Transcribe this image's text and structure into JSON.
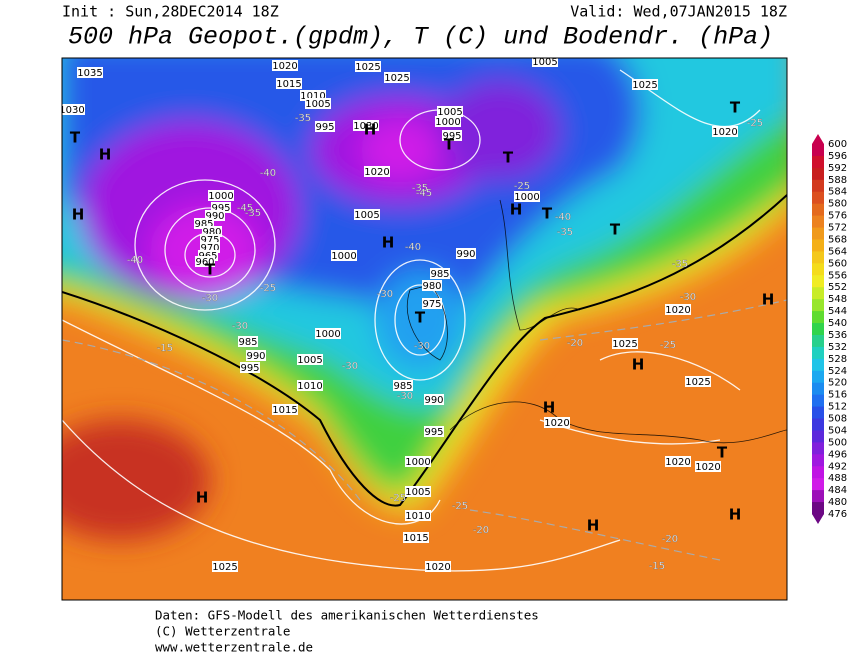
{
  "header": {
    "init": "Init : Sun,28DEC2014 18Z",
    "valid": "Valid: Wed,07JAN2015 18Z",
    "title": "500 hPa Geopot.(gpdm), T (C) und Bodendr. (hPa)"
  },
  "colorbar": {
    "labels": [
      600,
      596,
      592,
      588,
      584,
      580,
      576,
      572,
      568,
      564,
      560,
      556,
      552,
      548,
      544,
      540,
      536,
      532,
      528,
      524,
      520,
      516,
      512,
      508,
      504,
      500,
      496,
      492,
      488,
      484,
      480,
      476
    ],
    "colors": [
      "#c8004e",
      "#d0102c",
      "#c81e1e",
      "#d23a1e",
      "#dc5020",
      "#e46a1e",
      "#ec8220",
      "#f09a1c",
      "#f4b018",
      "#f4c81c",
      "#f4dc1c",
      "#f0ec24",
      "#c8ec28",
      "#98e62c",
      "#60dc30",
      "#30d44c",
      "#28d08c",
      "#20d0c0",
      "#20c4e8",
      "#1ca8f0",
      "#1c8cf0",
      "#2070f0",
      "#2850e8",
      "#3c38e0",
      "#5c28dc",
      "#8020dc",
      "#a018e0",
      "#c014e4",
      "#d01ce8",
      "#9c10b8",
      "#6c0884"
    ]
  },
  "map_labels": [
    "1035",
    "1030",
    "1020",
    "1015",
    "1010",
    "1005",
    "1025",
    "1025",
    "995",
    "1030",
    "1005",
    "1000",
    "995",
    "1020",
    "1000",
    "995",
    "990",
    "985",
    "980",
    "975",
    "970",
    "965",
    "960",
    "1005",
    "1000",
    "990",
    "985",
    "980",
    "975",
    "1000",
    "1005",
    "1025",
    "1020",
    "985",
    "990",
    "995",
    "1000",
    "1005",
    "1010",
    "1015",
    "985",
    "990",
    "995",
    "1000",
    "1005",
    "1010",
    "1015",
    "1020",
    "1025",
    "1020",
    "1025",
    "1025",
    "1020",
    "1020",
    "1020",
    "T",
    "H",
    "H",
    "T",
    "H",
    "T",
    "T",
    "H",
    "H",
    "T",
    "T",
    "T",
    "H",
    "H",
    "T",
    "H",
    "H",
    "H",
    "T",
    "H",
    "-35",
    "-45",
    "-40",
    "-35",
    "-40",
    "-30",
    "-25",
    "-30",
    "-15",
    "-35",
    "-45",
    "-40",
    "-30",
    "-30",
    "-30",
    "-30",
    "-40",
    "-35",
    "-35",
    "-30",
    "-25",
    "-20",
    "-25",
    "-25",
    "-25",
    "-20",
    "-20",
    "-15",
    "-25"
  ],
  "footer": {
    "source": "Daten: GFS-Modell des amerikanischen Wetterdienstes",
    "copyright": "(C) Wetterzentrale",
    "url": "www.wetterzentrale.de"
  }
}
